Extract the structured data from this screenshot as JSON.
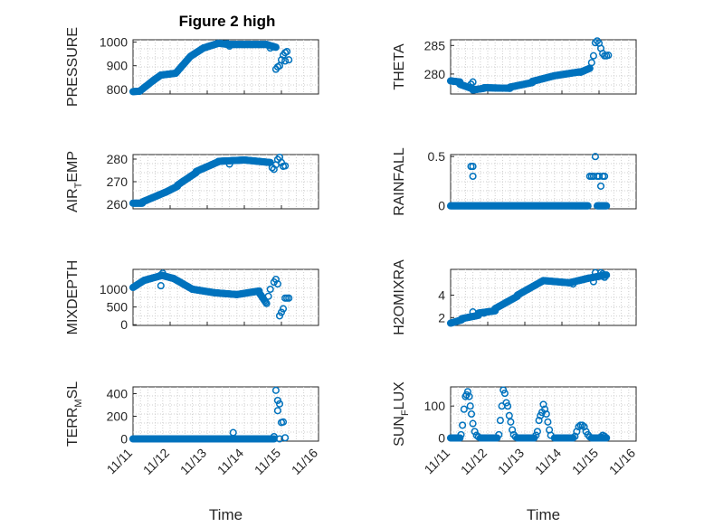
{
  "figure_title": "Figure 2 high",
  "colors": {
    "marker": "#0072BD",
    "axis": "#262626",
    "grid": "#cfcfcf"
  },
  "chart_data": [
    {
      "type": "scatter",
      "ylabel": "PRESSURE",
      "title": "Figure 2 high",
      "xlim": [
        0,
        5
      ],
      "ylim": [
        780,
        1010
      ],
      "yticks": [
        800,
        900,
        1000
      ],
      "xticks": [],
      "xlabel": "",
      "grid": true,
      "segments": [
        {
          "x": [
            0.0,
            0.18
          ],
          "y": [
            790,
            792
          ]
        },
        {
          "x": [
            0.18,
            0.55
          ],
          "y": [
            792,
            838
          ]
        },
        {
          "x": [
            0.55,
            0.75
          ],
          "y": [
            838,
            860
          ]
        },
        {
          "x": [
            0.75,
            1.15
          ],
          "y": [
            860,
            868
          ]
        },
        {
          "x": [
            1.15,
            1.55
          ],
          "y": [
            868,
            940
          ]
        },
        {
          "x": [
            1.55,
            1.9
          ],
          "y": [
            940,
            975
          ]
        },
        {
          "x": [
            1.9,
            2.3
          ],
          "y": [
            975,
            995
          ]
        },
        {
          "x": [
            2.3,
            2.6
          ],
          "y": [
            995,
            990
          ]
        },
        {
          "x": [
            2.6,
            3.6
          ],
          "y": [
            990,
            990
          ]
        },
        {
          "x": [
            3.6,
            3.85
          ],
          "y": [
            990,
            978
          ]
        }
      ],
      "points": [
        [
          2.6,
          983
        ],
        [
          2.55,
          994
        ],
        [
          3.7,
          975
        ],
        [
          3.85,
          885
        ],
        [
          3.9,
          895
        ],
        [
          3.95,
          900
        ],
        [
          4.0,
          925
        ],
        [
          4.05,
          945
        ],
        [
          4.1,
          920
        ],
        [
          4.2,
          925
        ],
        [
          4.1,
          955
        ],
        [
          4.15,
          960
        ]
      ]
    },
    {
      "type": "scatter",
      "ylabel": "THETA",
      "xlim": [
        0,
        5
      ],
      "ylim": [
        276.5,
        286
      ],
      "yticks": [
        280,
        285
      ],
      "xticks": [],
      "xlabel": "",
      "grid": true,
      "segments": [
        {
          "x": [
            0.0,
            0.25
          ],
          "y": [
            278.8,
            278.6
          ]
        },
        {
          "x": [
            0.25,
            0.6
          ],
          "y": [
            278.2,
            277.4
          ]
        },
        {
          "x": [
            0.6,
            0.9
          ],
          "y": [
            277.2,
            277.5
          ]
        },
        {
          "x": [
            0.9,
            1.6
          ],
          "y": [
            277.6,
            277.5
          ]
        },
        {
          "x": [
            1.6,
            2.2
          ],
          "y": [
            277.7,
            278.5
          ]
        },
        {
          "x": [
            2.2,
            2.8
          ],
          "y": [
            278.7,
            279.7
          ]
        },
        {
          "x": [
            2.8,
            3.5
          ],
          "y": [
            279.7,
            280.4
          ]
        },
        {
          "x": [
            3.5,
            3.75
          ],
          "y": [
            280.3,
            281.0
          ]
        }
      ],
      "points": [
        [
          3.8,
          282.0
        ],
        [
          3.85,
          283.2
        ],
        [
          3.9,
          285.5
        ],
        [
          3.95,
          285.8
        ],
        [
          4.0,
          285.4
        ],
        [
          4.05,
          284.5
        ],
        [
          4.1,
          283.6
        ],
        [
          4.15,
          283.2
        ],
        [
          4.2,
          283.2
        ],
        [
          4.25,
          283.3
        ],
        [
          0.55,
          278.2
        ],
        [
          0.6,
          278.6
        ]
      ]
    },
    {
      "type": "scatter",
      "ylabel": "AIR_TEMP",
      "xlim": [
        0,
        5
      ],
      "ylim": [
        258,
        282
      ],
      "yticks": [
        260,
        270,
        280
      ],
      "xticks": [],
      "xlabel": "",
      "grid": true,
      "segments": [
        {
          "x": [
            0.0,
            0.25
          ],
          "y": [
            260.5,
            260.5
          ]
        },
        {
          "x": [
            0.25,
            0.9
          ],
          "y": [
            261,
            265.5
          ]
        },
        {
          "x": [
            0.9,
            1.2
          ],
          "y": [
            265.5,
            268
          ]
        },
        {
          "x": [
            1.2,
            1.7
          ],
          "y": [
            268.5,
            274
          ]
        },
        {
          "x": [
            1.7,
            2.3
          ],
          "y": [
            274.5,
            278.8
          ]
        },
        {
          "x": [
            2.3,
            3.0
          ],
          "y": [
            279,
            279.6
          ]
        },
        {
          "x": [
            3.0,
            3.7
          ],
          "y": [
            279.6,
            278.5
          ]
        }
      ],
      "points": [
        [
          2.6,
          277.8
        ],
        [
          3.75,
          276.2
        ],
        [
          3.8,
          275.5
        ],
        [
          3.85,
          277.5
        ],
        [
          3.9,
          279.8
        ],
        [
          3.95,
          280.8
        ],
        [
          4.0,
          278.5
        ],
        [
          4.05,
          276.8
        ],
        [
          4.1,
          277.0
        ]
      ]
    },
    {
      "type": "scatter",
      "ylabel": "RAINFALL",
      "xlim": [
        0,
        5
      ],
      "ylim": [
        -0.03,
        0.52
      ],
      "yticks": [
        0,
        0.5
      ],
      "xticks": [],
      "xlabel": "",
      "grid": true,
      "segments": [
        {
          "x": [
            0.0,
            3.7
          ],
          "y": [
            0,
            0
          ]
        },
        {
          "x": [
            3.95,
            4.2
          ],
          "y": [
            0,
            0
          ]
        }
      ],
      "points": [
        [
          0.55,
          0.4
        ],
        [
          0.6,
          0.4
        ],
        [
          0.6,
          0.3
        ],
        [
          3.75,
          0.3
        ],
        [
          3.8,
          0.3
        ],
        [
          3.85,
          0.3
        ],
        [
          3.9,
          0.5
        ],
        [
          3.95,
          0.3
        ],
        [
          4.0,
          0.3
        ],
        [
          4.05,
          0.2
        ],
        [
          4.1,
          0.3
        ],
        [
          4.15,
          0.3
        ]
      ]
    },
    {
      "type": "scatter",
      "ylabel": "MIXDEPTH",
      "xlim": [
        0,
        5
      ],
      "ylim": [
        -20,
        1560
      ],
      "yticks": [
        0,
        500,
        1000
      ],
      "xticks": [],
      "xlabel": "",
      "grid": true,
      "segments": [
        {
          "x": [
            0.0,
            0.3
          ],
          "y": [
            1050,
            1250
          ]
        },
        {
          "x": [
            0.3,
            0.75
          ],
          "y": [
            1250,
            1380
          ]
        },
        {
          "x": [
            0.75,
            1.1
          ],
          "y": [
            1400,
            1300
          ]
        },
        {
          "x": [
            1.1,
            1.6
          ],
          "y": [
            1300,
            1000
          ]
        },
        {
          "x": [
            1.6,
            2.2
          ],
          "y": [
            1000,
            900
          ]
        },
        {
          "x": [
            2.2,
            2.8
          ],
          "y": [
            900,
            850
          ]
        },
        {
          "x": [
            2.8,
            3.4
          ],
          "y": [
            850,
            950
          ]
        },
        {
          "x": [
            3.4,
            3.6
          ],
          "y": [
            900,
            600
          ]
        }
      ],
      "points": [
        [
          0.75,
          1100
        ],
        [
          0.8,
          1450
        ],
        [
          3.65,
          800
        ],
        [
          3.7,
          1000
        ],
        [
          3.8,
          1200
        ],
        [
          3.85,
          1280
        ],
        [
          3.9,
          1150
        ],
        [
          3.95,
          250
        ],
        [
          4.0,
          350
        ],
        [
          4.05,
          450
        ],
        [
          4.1,
          750
        ],
        [
          4.15,
          750
        ],
        [
          4.2,
          750
        ]
      ]
    },
    {
      "type": "scatter",
      "ylabel": "H2OMIXRA",
      "xlim": [
        0,
        5
      ],
      "ylim": [
        1.3,
        6.3
      ],
      "yticks": [
        2,
        4
      ],
      "xticks": [],
      "xlabel": "",
      "grid": true,
      "segments": [
        {
          "x": [
            0.0,
            0.3
          ],
          "y": [
            1.5,
            1.8
          ]
        },
        {
          "x": [
            0.3,
            0.75
          ],
          "y": [
            1.9,
            2.2
          ]
        },
        {
          "x": [
            0.75,
            1.2
          ],
          "y": [
            2.4,
            2.6
          ]
        },
        {
          "x": [
            1.2,
            1.8
          ],
          "y": [
            2.8,
            3.9
          ]
        },
        {
          "x": [
            1.8,
            2.5
          ],
          "y": [
            4.0,
            5.3
          ]
        },
        {
          "x": [
            2.5,
            3.2
          ],
          "y": [
            5.3,
            5.1
          ]
        },
        {
          "x": [
            3.2,
            3.7
          ],
          "y": [
            5.1,
            5.5
          ]
        },
        {
          "x": [
            3.7,
            4.2
          ],
          "y": [
            5.5,
            5.8
          ]
        }
      ],
      "points": [
        [
          0.6,
          2.5
        ],
        [
          0.9,
          2.4
        ],
        [
          3.3,
          5.0
        ],
        [
          3.85,
          5.2
        ],
        [
          3.9,
          6.0
        ],
        [
          4.05,
          6.0
        ],
        [
          4.1,
          5.9
        ],
        [
          4.15,
          5.6
        ]
      ]
    },
    {
      "type": "scatter",
      "ylabel": "TERR_MSL",
      "xlim": [
        0,
        5
      ],
      "ylim": [
        -20,
        460
      ],
      "yticks": [
        0,
        200,
        400
      ],
      "xticks": [
        "11/11",
        "11/12",
        "11/13",
        "11/14",
        "11/15",
        "11/16"
      ],
      "xlabel": "Time",
      "grid": true,
      "segments": [
        {
          "x": [
            0.0,
            3.7
          ],
          "y": [
            0,
            0
          ]
        },
        {
          "x": [
            3.7,
            3.8
          ],
          "y": [
            0,
            0
          ]
        }
      ],
      "points": [
        [
          2.7,
          55
        ],
        [
          3.75,
          0
        ],
        [
          3.8,
          20
        ],
        [
          3.85,
          430
        ],
        [
          3.9,
          340
        ],
        [
          3.95,
          310
        ],
        [
          3.9,
          250
        ],
        [
          3.95,
          0
        ],
        [
          4.0,
          145
        ],
        [
          4.05,
          150
        ],
        [
          4.1,
          10
        ]
      ]
    },
    {
      "type": "scatter",
      "ylabel": "SUN_FLUX",
      "xlim": [
        0,
        5
      ],
      "ylim": [
        -10,
        160
      ],
      "yticks": [
        0,
        100
      ],
      "xticks": [
        "11/11",
        "11/12",
        "11/13",
        "11/14",
        "11/15",
        "11/16"
      ],
      "xlabel": "Time",
      "grid": true,
      "segments": [
        {
          "x": [
            0.0,
            0.25
          ],
          "y": [
            0,
            0
          ]
        },
        {
          "x": [
            0.8,
            1.25
          ],
          "y": [
            0,
            0
          ]
        },
        {
          "x": [
            1.8,
            2.25
          ],
          "y": [
            0,
            0
          ]
        },
        {
          "x": [
            2.8,
            3.3
          ],
          "y": [
            0,
            0
          ]
        },
        {
          "x": [
            3.8,
            4.2
          ],
          "y": [
            0,
            0
          ]
        }
      ],
      "points": [
        [
          0.28,
          10
        ],
        [
          0.32,
          40
        ],
        [
          0.36,
          90
        ],
        [
          0.4,
          130
        ],
        [
          0.43,
          135
        ],
        [
          0.46,
          145
        ],
        [
          0.5,
          130
        ],
        [
          0.53,
          100
        ],
        [
          0.56,
          75
        ],
        [
          0.6,
          45
        ],
        [
          0.65,
          20
        ],
        [
          0.7,
          8
        ],
        [
          0.75,
          3
        ],
        [
          1.3,
          10
        ],
        [
          1.34,
          55
        ],
        [
          1.38,
          100
        ],
        [
          1.42,
          150
        ],
        [
          1.46,
          140
        ],
        [
          1.5,
          110
        ],
        [
          1.54,
          100
        ],
        [
          1.58,
          70
        ],
        [
          1.62,
          50
        ],
        [
          1.66,
          25
        ],
        [
          1.7,
          10
        ],
        [
          1.75,
          3
        ],
        [
          2.3,
          8
        ],
        [
          2.34,
          20
        ],
        [
          2.38,
          55
        ],
        [
          2.42,
          70
        ],
        [
          2.46,
          80
        ],
        [
          2.5,
          105
        ],
        [
          2.54,
          90
        ],
        [
          2.58,
          75
        ],
        [
          2.62,
          50
        ],
        [
          2.66,
          25
        ],
        [
          2.7,
          8
        ],
        [
          3.35,
          5
        ],
        [
          3.4,
          20
        ],
        [
          3.45,
          35
        ],
        [
          3.5,
          40
        ],
        [
          3.55,
          40
        ],
        [
          3.6,
          35
        ],
        [
          3.65,
          20
        ],
        [
          3.7,
          10
        ],
        [
          3.75,
          3
        ],
        [
          4.05,
          3
        ],
        [
          4.1,
          8
        ],
        [
          4.15,
          5
        ]
      ]
    }
  ]
}
